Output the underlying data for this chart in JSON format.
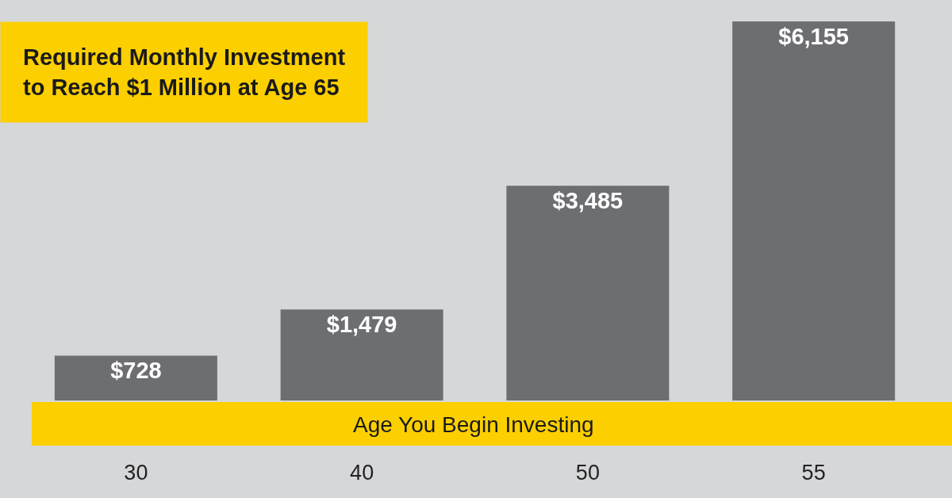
{
  "chart_data": {
    "type": "bar",
    "title": "Required Monthly Investment\nto Reach $1 Million at Age 65",
    "xlabel": "Age You Begin Investing",
    "categories": [
      "30",
      "40",
      "50",
      "55"
    ],
    "values": [
      728,
      1479,
      3485,
      6155
    ],
    "value_labels": [
      "$728",
      "$1,479",
      "$3,485",
      "$6,155"
    ],
    "color": "#6d6e71",
    "grid": false,
    "legend": false,
    "tick_labels": "x"
  }
}
